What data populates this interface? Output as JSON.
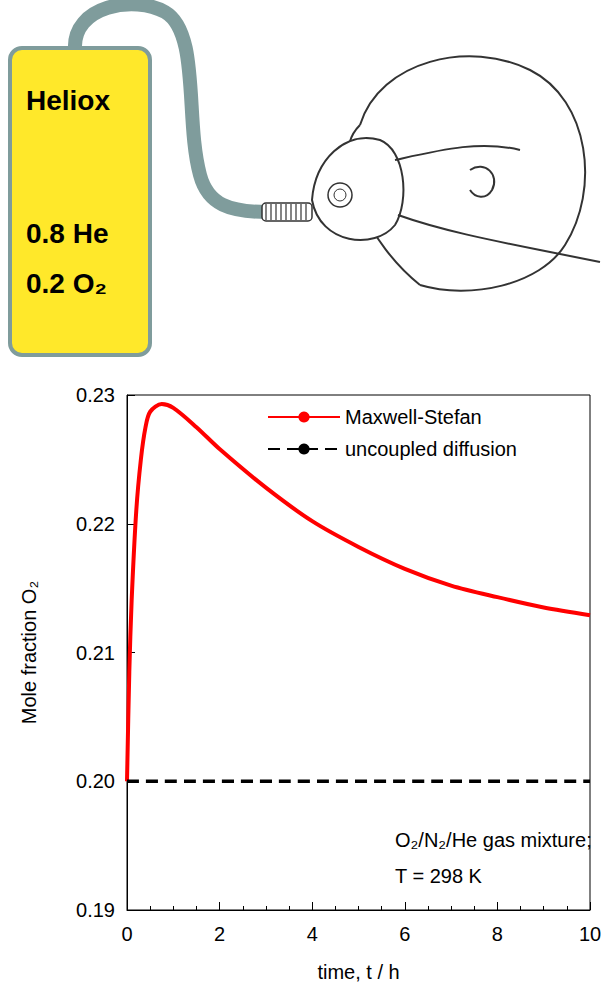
{
  "illustration": {
    "tank": {
      "title": "Heliox",
      "lines": [
        "0.8 He",
        "0.2 O₂"
      ]
    }
  },
  "chart_data": {
    "type": "line",
    "xlabel": "time, t / h",
    "ylabel": "Mole fraction O₂",
    "xlim": [
      0,
      10
    ],
    "xticks": [
      0,
      2,
      4,
      6,
      8,
      10
    ],
    "ylim": [
      0.19,
      0.23
    ],
    "yticks": [
      0.19,
      {
        "value": 0.2,
        "label": "0.20"
      },
      0.21,
      0.22,
      0.23
    ],
    "grid": false,
    "legend": "upper right",
    "annotations": [
      "O₂/N₂/He gas mixture;",
      "T = 298 K"
    ],
    "series": [
      {
        "name": "Maxwell-Stefan",
        "color": "#ff0000",
        "line_style": "solid",
        "x": [
          0,
          0.05,
          0.1,
          0.2,
          0.3,
          0.4,
          0.5,
          0.75,
          1,
          1.5,
          2,
          3,
          4,
          5,
          6,
          7,
          8,
          9,
          10
        ],
        "values": [
          0.2,
          0.2085,
          0.214,
          0.221,
          0.225,
          0.2275,
          0.2287,
          0.2293,
          0.229,
          0.2275,
          0.2258,
          0.2228,
          0.2202,
          0.2182,
          0.2165,
          0.2152,
          0.2143,
          0.2135,
          0.2129
        ]
      },
      {
        "name": "uncoupled diffusion",
        "color": "#000000",
        "line_style": "dashed",
        "x": [
          0,
          10
        ],
        "values": [
          0.2,
          0.2
        ]
      }
    ]
  }
}
